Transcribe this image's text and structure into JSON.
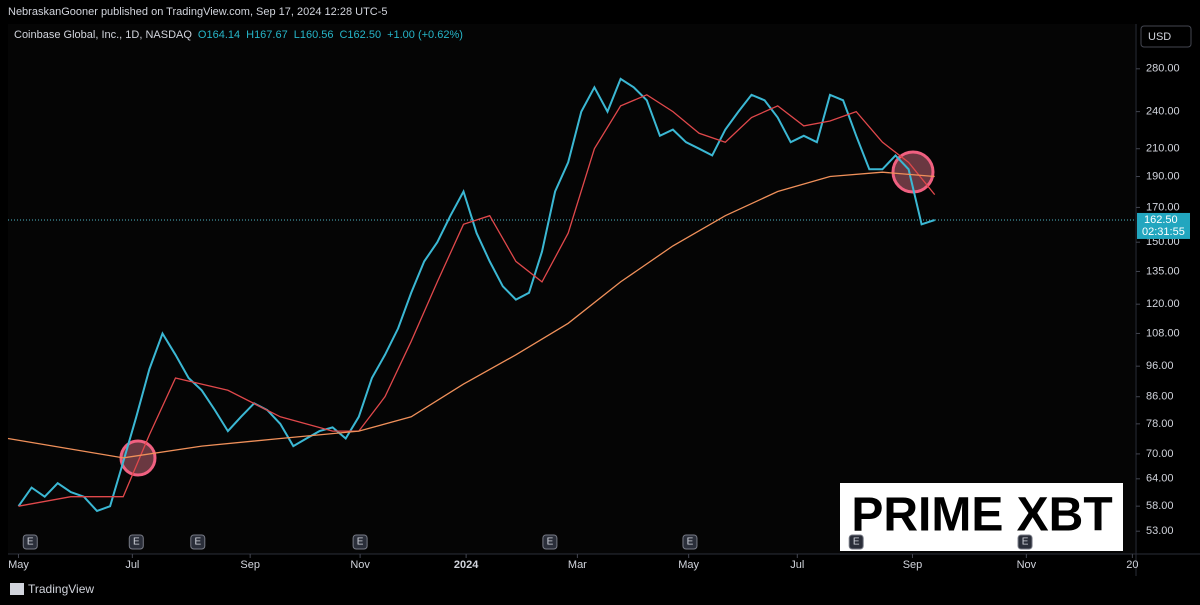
{
  "header": {
    "publisher": "NebraskanGooner published on TradingView.com, Sep 17, 2024 12:28 UTC-5"
  },
  "legend": {
    "symbol": "Coinbase Global, Inc., 1D, NASDAQ",
    "items": [
      "O164.14",
      "H167.67",
      "L160.56",
      "C162.50",
      "+1.00 (+0.62%)"
    ]
  },
  "currency": "USD",
  "watermark": "PRIME XBT",
  "footer": "TradingView",
  "chart_data": {
    "type": "line",
    "log_scale": true,
    "xlim": [
      -0.8,
      85.3
    ],
    "ylim": [
      49,
      329
    ],
    "xticks": [
      {
        "value": 0,
        "label": "May"
      },
      {
        "value": 8.7,
        "label": "Jul"
      },
      {
        "value": 17.7,
        "label": "Sep"
      },
      {
        "value": 26.1,
        "label": "Nov"
      },
      {
        "value": 34.2,
        "label": "2024"
      },
      {
        "value": 42.7,
        "label": "Mar"
      },
      {
        "value": 51.2,
        "label": "May"
      },
      {
        "value": 59.5,
        "label": "Jul"
      },
      {
        "value": 68.3,
        "label": "Sep"
      },
      {
        "value": 77.0,
        "label": "Nov"
      },
      {
        "value": 85.1,
        "label": "20"
      }
    ],
    "yticks": [
      {
        "value": 280,
        "label": "280.00"
      },
      {
        "value": 240,
        "label": "240.00"
      },
      {
        "value": 210,
        "label": "210.00"
      },
      {
        "value": 190,
        "label": "190.00"
      },
      {
        "value": 170,
        "label": "170.00"
      },
      {
        "value": 150,
        "label": "150.00"
      },
      {
        "value": 135,
        "label": "135.00"
      },
      {
        "value": 120,
        "label": "120.00"
      },
      {
        "value": 108,
        "label": "108.00"
      },
      {
        "value": 96,
        "label": "96.00"
      },
      {
        "value": 86,
        "label": "86.00"
      },
      {
        "value": 78,
        "label": "78.00"
      },
      {
        "value": 70,
        "label": "70.00"
      },
      {
        "value": 64,
        "label": "64.00"
      },
      {
        "value": 58,
        "label": "58.00"
      },
      {
        "value": 53,
        "label": "53.00"
      }
    ],
    "series": [
      {
        "color": "#3bb8d4",
        "x": [
          0,
          1,
          2,
          3,
          4,
          5,
          6,
          7,
          8,
          9,
          10,
          11,
          12,
          13,
          14,
          15,
          16,
          17,
          18,
          19,
          20,
          21,
          22,
          23,
          24,
          25,
          26,
          27,
          28,
          29,
          30,
          31,
          32,
          33,
          34,
          35,
          36,
          37,
          38,
          39,
          40,
          41,
          42,
          43,
          44,
          45,
          46,
          47,
          48,
          49,
          50,
          51,
          52,
          53,
          54,
          55,
          56,
          57,
          58,
          59,
          60,
          61,
          62,
          63,
          64,
          65,
          66,
          67,
          68,
          69,
          70
        ],
        "values": [
          58,
          62,
          60,
          63,
          61,
          60,
          57,
          58,
          68,
          80,
          95,
          108,
          100,
          92,
          88,
          82,
          76,
          80,
          84,
          82,
          78,
          72,
          74,
          76,
          77,
          74,
          80,
          92,
          100,
          110,
          125,
          140,
          150,
          165,
          180,
          155,
          140,
          128,
          122,
          125,
          145,
          180,
          200,
          240,
          262,
          240,
          270,
          262,
          250,
          220,
          225,
          215,
          210,
          205,
          225,
          240,
          255,
          250,
          235,
          215,
          220,
          215,
          255,
          250,
          220,
          195,
          195,
          205,
          195,
          160,
          162.5
        ]
      },
      {
        "color": "#e0484b",
        "x": [
          0,
          4,
          8,
          10,
          12,
          16,
          20,
          24,
          26,
          28,
          30,
          32,
          34,
          36,
          38,
          40,
          42,
          44,
          46,
          48,
          50,
          52,
          54,
          56,
          58,
          60,
          62,
          64,
          66,
          68,
          70
        ],
        "values": [
          58,
          60,
          60,
          75,
          92,
          88,
          80,
          76,
          76,
          86,
          105,
          130,
          160,
          165,
          140,
          130,
          155,
          210,
          245,
          255,
          240,
          222,
          215,
          235,
          245,
          228,
          232,
          240,
          215,
          200,
          178
        ]
      },
      {
        "color": "#f0905a",
        "x": [
          -0.8,
          8,
          14,
          20,
          26,
          30,
          34,
          38,
          42,
          46,
          50,
          54,
          58,
          62,
          66,
          70
        ],
        "values": [
          74,
          69,
          72,
          74,
          76,
          80,
          90,
          100,
          112,
          130,
          148,
          165,
          180,
          190,
          193,
          190
        ]
      }
    ],
    "last_price": {
      "value": 162.5,
      "label": "162.50"
    },
    "countdown": "02:31:55",
    "events": [
      {
        "x": 0.9,
        "label": "E"
      },
      {
        "x": 9.0,
        "label": "E"
      },
      {
        "x": 13.7,
        "label": "E"
      },
      {
        "x": 26.1,
        "label": "E"
      },
      {
        "x": 40.6,
        "label": "E"
      },
      {
        "x": 51.3,
        "label": "E"
      },
      {
        "x": 64.0,
        "label": "E"
      },
      {
        "x": 76.9,
        "label": "E"
      }
    ]
  }
}
